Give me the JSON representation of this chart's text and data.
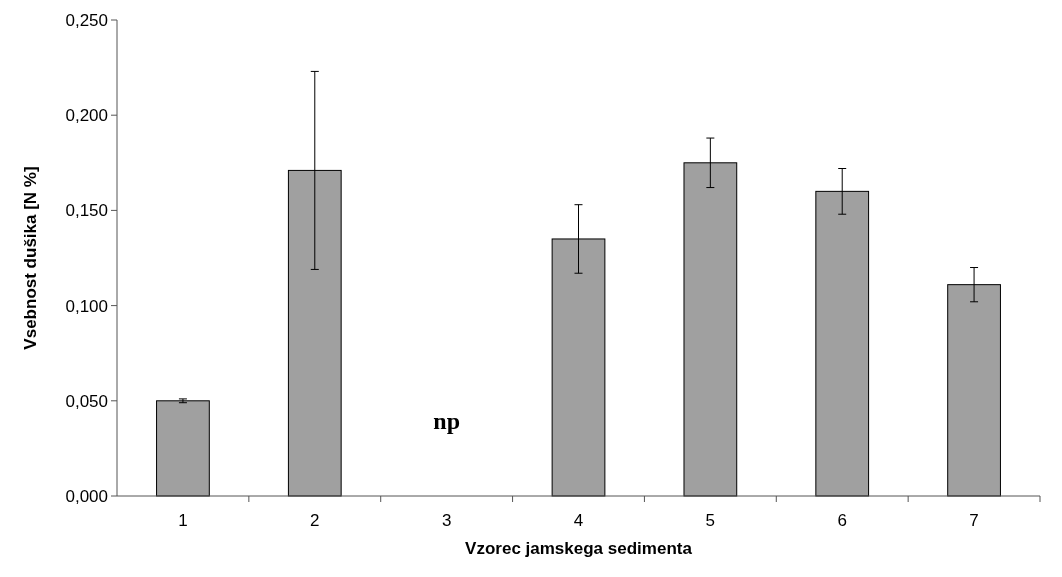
{
  "chart_data": {
    "type": "bar",
    "xlabel": "Vzorec jamskega sedimenta",
    "ylabel": "Vsebnost dušika [N %]",
    "categories": [
      "1",
      "2",
      "3",
      "4",
      "5",
      "6",
      "7"
    ],
    "values": [
      0.05,
      0.171,
      null,
      0.135,
      0.175,
      0.16,
      0.111
    ],
    "errors": [
      0.001,
      0.052,
      null,
      0.018,
      0.013,
      0.012,
      0.009
    ],
    "color": "#a0a0a0",
    "ylim": [
      0,
      0.25
    ],
    "yticks": [
      {
        "value": 0,
        "label": "0,000"
      },
      {
        "value": 0.05,
        "label": "0,050"
      },
      {
        "value": 0.1,
        "label": "0,100"
      },
      {
        "value": 0.15,
        "label": "0,150"
      },
      {
        "value": 0.2,
        "label": "0,200"
      },
      {
        "value": 0.25,
        "label": "0,250"
      }
    ],
    "annotations": [
      "np"
    ]
  }
}
